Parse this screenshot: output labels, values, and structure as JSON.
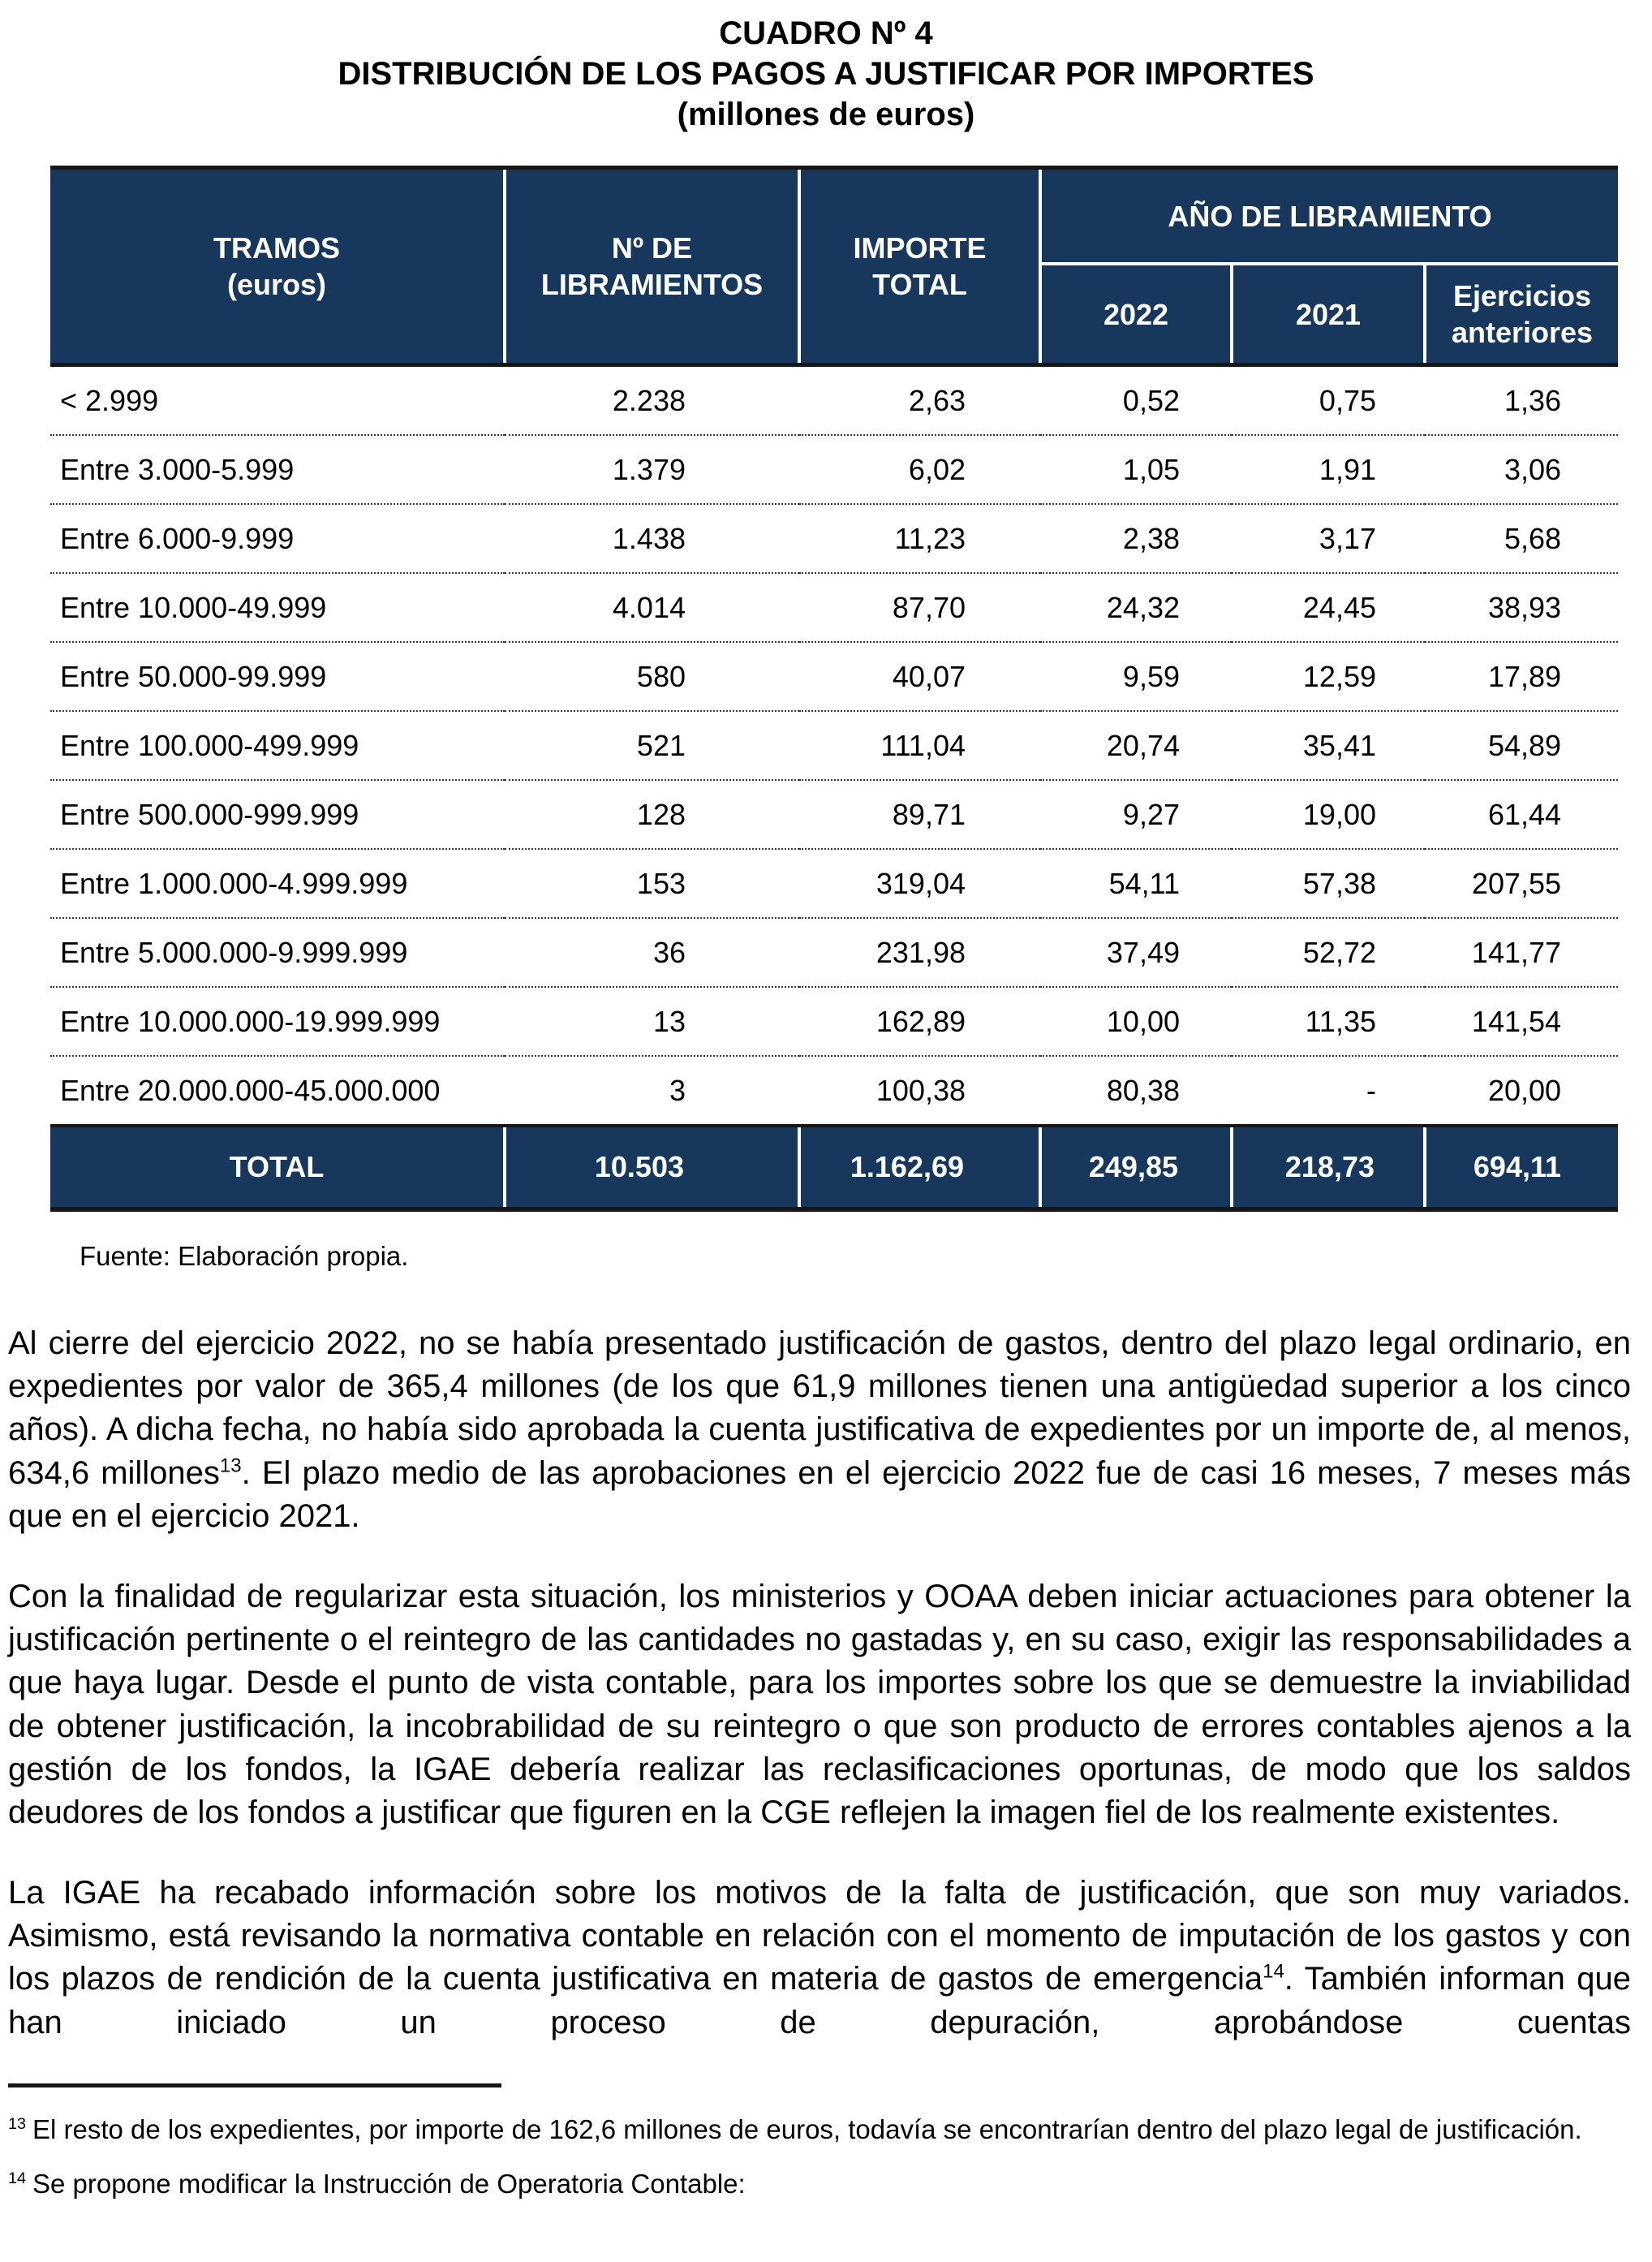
{
  "title": {
    "line1": "CUADRO Nº 4",
    "line2": "DISTRIBUCIÓN DE LOS PAGOS A JUSTIFICAR POR IMPORTES",
    "line3": "(millones de euros)"
  },
  "colors": {
    "header_navy": "#17375C",
    "text_black": "#000000",
    "border_black": "#161616"
  },
  "table": {
    "header": {
      "tramos": [
        "TRAMOS",
        "(euros)"
      ],
      "libramientos": [
        "Nº DE",
        "LIBRAMIENTOS"
      ],
      "importe": [
        "IMPORTE",
        "TOTAL"
      ],
      "anio_span": "AÑO DE LIBRAMIENTO",
      "y2022": "2022",
      "y2021": "2021",
      "anteriores": [
        "Ejercicios",
        "anteriores"
      ]
    },
    "rows": [
      {
        "label": "< 2.999",
        "values": [
          "2.238",
          "2,63",
          "0,52",
          "0,75",
          "1,36"
        ]
      },
      {
        "label": "Entre 3.000-5.999",
        "values": [
          "1.379",
          "6,02",
          "1,05",
          "1,91",
          "3,06"
        ]
      },
      {
        "label": "Entre 6.000-9.999",
        "values": [
          "1.438",
          "11,23",
          "2,38",
          "3,17",
          "5,68"
        ]
      },
      {
        "label": "Entre 10.000-49.999",
        "values": [
          "4.014",
          "87,70",
          "24,32",
          "24,45",
          "38,93"
        ]
      },
      {
        "label": "Entre 50.000-99.999",
        "values": [
          "580",
          "40,07",
          "9,59",
          "12,59",
          "17,89"
        ]
      },
      {
        "label": "Entre 100.000-499.999",
        "values": [
          "521",
          "111,04",
          "20,74",
          "35,41",
          "54,89"
        ]
      },
      {
        "label": "Entre 500.000-999.999",
        "values": [
          "128",
          "89,71",
          "9,27",
          "19,00",
          "61,44"
        ]
      },
      {
        "label": "Entre 1.000.000-4.999.999",
        "values": [
          "153",
          "319,04",
          "54,11",
          "57,38",
          "207,55"
        ]
      },
      {
        "label": "Entre 5.000.000-9.999.999",
        "values": [
          "36",
          "231,98",
          "37,49",
          "52,72",
          "141,77"
        ]
      },
      {
        "label": "Entre 10.000.000-19.999.999",
        "values": [
          "13",
          "162,89",
          "10,00",
          "11,35",
          "141,54"
        ]
      },
      {
        "label": "Entre 20.000.000-45.000.000",
        "values": [
          "3",
          "100,38",
          "80,38",
          "-",
          "20,00"
        ]
      }
    ],
    "total": {
      "label": "TOTAL",
      "values": [
        "10.503",
        "1.162,69",
        "249,85",
        "218,73",
        "694,11"
      ]
    },
    "source": "Fuente: Elaboración propia."
  },
  "body": {
    "paragraphs": [
      {
        "part1": "Al cierre del ejercicio 2022, no se había presentado justificación de gastos, dentro del plazo legal ordinario, en expedientes por valor de 365,4 millones (de los que 61,9 millones tienen una antigüedad superior a los cinco años). A dicha fecha, no había sido aprobada la cuenta justificativa de expedientes por un importe de, al menos, 634,6 millones",
        "sup": "13",
        "part2": ". El plazo medio de las aprobaciones en el ejercicio 2022 fue de casi 16 meses, 7 meses más que en el ejercicio 2021."
      },
      {
        "part1": "Con la finalidad de regularizar esta situación, los ministerios y OOAA deben iniciar actuaciones para obtener la justificación pertinente o el reintegro de las cantidades no gastadas y, en su caso, exigir las responsabilidades a que haya lugar. Desde el punto de vista contable, para los importes sobre los que se demuestre la inviabilidad de obtener justificación, la incobrabilidad de su reintegro o que son producto de errores contables ajenos a la gestión de los fondos, la IGAE debería realizar las reclasificaciones oportunas, de modo que los saldos deudores de los fondos a justificar que figuren en la CGE reflejen la imagen fiel de los realmente existentes.",
        "sup": "",
        "part2": ""
      },
      {
        "part1": "La IGAE ha recabado información sobre los motivos de la falta de justificación, que son muy variados. Asimismo, está revisando la normativa contable en relación con el momento de imputación de los gastos y con los plazos de rendición de la cuenta justificativa en materia de gastos de emergencia",
        "sup": "14",
        "part2": ". También informan que han iniciado un proceso de depuración, aprobándose cuentas"
      }
    ]
  },
  "footnotes": [
    {
      "marker": "13",
      "text": "El resto de los expedientes, por importe de 162,6 millones de euros, todavía se encontrarían dentro del plazo legal de justificación."
    },
    {
      "marker": "14",
      "text": "Se propone modificar la Instrucción de Operatoria Contable:"
    }
  ]
}
